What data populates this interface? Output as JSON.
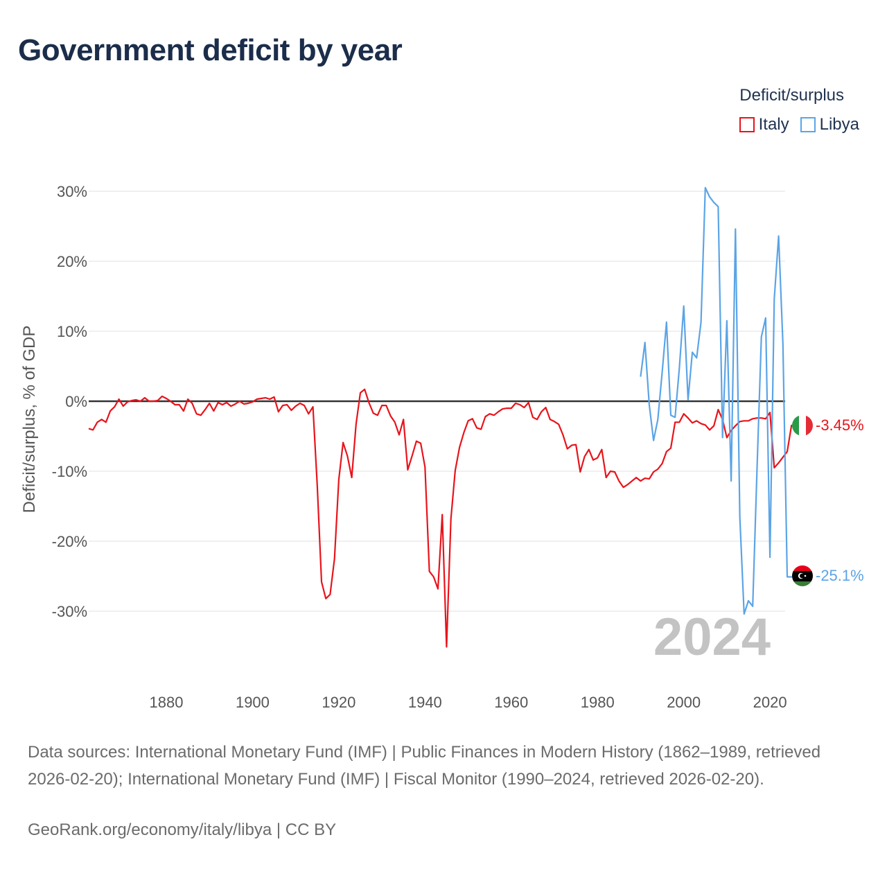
{
  "title": "Government deficit by year",
  "legend": {
    "title": "Deficit/surplus",
    "items": [
      {
        "name": "Italy",
        "color": "#e8131b"
      },
      {
        "name": "Libya",
        "color": "#5ba4e6"
      }
    ]
  },
  "chart_data": {
    "type": "line",
    "title": "Government deficit by year",
    "ylabel": "Deficit/surplus, % of GDP",
    "xlabel": "",
    "xlim": [
      1862,
      2024
    ],
    "ylim": [
      -40,
      30
    ],
    "yticks": [
      30,
      20,
      10,
      0,
      -10,
      -20,
      -30
    ],
    "ytick_labels": [
      "30%",
      "20%",
      "10%",
      "0%",
      "-10%",
      "-20%",
      "-30%"
    ],
    "xticks": [
      1880,
      1900,
      1920,
      1940,
      1960,
      1980,
      2000,
      2020
    ],
    "xtick_labels": [
      "1880",
      "1900",
      "1920",
      "1940",
      "1960",
      "1980",
      "2000",
      "2020"
    ],
    "current_year_label": "2024",
    "series": [
      {
        "name": "Italy",
        "color": "#e8131b",
        "end_label": "-3.45%",
        "end_value": -3.45,
        "points": [
          [
            1862,
            -3.9
          ],
          [
            1863,
            -4.1
          ],
          [
            1864,
            -3.0
          ],
          [
            1865,
            -2.6
          ],
          [
            1866,
            -3.0
          ],
          [
            1867,
            -1.4
          ],
          [
            1868,
            -0.8
          ],
          [
            1869,
            0.3
          ],
          [
            1870,
            -0.7
          ],
          [
            1871,
            -0.1
          ],
          [
            1872,
            0.1
          ],
          [
            1873,
            0.2
          ],
          [
            1874,
            0.0
          ],
          [
            1875,
            0.5
          ],
          [
            1876,
            0.0
          ],
          [
            1877,
            0.0
          ],
          [
            1878,
            0.1
          ],
          [
            1879,
            0.7
          ],
          [
            1880,
            0.4
          ],
          [
            1881,
            0.0
          ],
          [
            1882,
            -0.5
          ],
          [
            1883,
            -0.5
          ],
          [
            1884,
            -1.4
          ],
          [
            1885,
            0.3
          ],
          [
            1886,
            -0.3
          ],
          [
            1887,
            -1.8
          ],
          [
            1888,
            -2.0
          ],
          [
            1889,
            -1.2
          ],
          [
            1890,
            -0.3
          ],
          [
            1891,
            -1.4
          ],
          [
            1892,
            -0.2
          ],
          [
            1893,
            -0.5
          ],
          [
            1894,
            -0.2
          ],
          [
            1895,
            -0.7
          ],
          [
            1896,
            -0.4
          ],
          [
            1897,
            0.0
          ],
          [
            1898,
            -0.4
          ],
          [
            1899,
            -0.3
          ],
          [
            1900,
            -0.1
          ],
          [
            1901,
            0.3
          ],
          [
            1902,
            0.4
          ],
          [
            1903,
            0.5
          ],
          [
            1904,
            0.3
          ],
          [
            1905,
            0.6
          ],
          [
            1906,
            -1.5
          ],
          [
            1907,
            -0.6
          ],
          [
            1908,
            -0.5
          ],
          [
            1909,
            -1.3
          ],
          [
            1910,
            -0.7
          ],
          [
            1911,
            -0.3
          ],
          [
            1912,
            -0.6
          ],
          [
            1913,
            -1.8
          ],
          [
            1914,
            -0.8
          ],
          [
            1915,
            -12.0
          ],
          [
            1916,
            -25.8
          ],
          [
            1917,
            -28.2
          ],
          [
            1918,
            -27.6
          ],
          [
            1919,
            -22.5
          ],
          [
            1920,
            -11.2
          ],
          [
            1921,
            -5.9
          ],
          [
            1922,
            -7.8
          ],
          [
            1923,
            -10.9
          ],
          [
            1924,
            -3.3
          ],
          [
            1925,
            1.2
          ],
          [
            1926,
            1.7
          ],
          [
            1927,
            -0.2
          ],
          [
            1928,
            -1.7
          ],
          [
            1929,
            -2.0
          ],
          [
            1930,
            -0.6
          ],
          [
            1931,
            -0.6
          ],
          [
            1932,
            -2.1
          ],
          [
            1933,
            -3.0
          ],
          [
            1934,
            -4.8
          ],
          [
            1935,
            -2.6
          ],
          [
            1936,
            -9.8
          ],
          [
            1937,
            -7.8
          ],
          [
            1938,
            -5.7
          ],
          [
            1939,
            -6.0
          ],
          [
            1940,
            -9.4
          ],
          [
            1941,
            -24.3
          ],
          [
            1942,
            -25.1
          ],
          [
            1943,
            -26.8
          ],
          [
            1944,
            -16.2
          ],
          [
            1945,
            -35.1
          ],
          [
            1946,
            -16.8
          ],
          [
            1947,
            -9.9
          ],
          [
            1948,
            -6.6
          ],
          [
            1949,
            -4.5
          ],
          [
            1950,
            -2.8
          ],
          [
            1951,
            -2.5
          ],
          [
            1952,
            -3.8
          ],
          [
            1953,
            -4.0
          ],
          [
            1954,
            -2.2
          ],
          [
            1955,
            -1.8
          ],
          [
            1956,
            -2.0
          ],
          [
            1957,
            -1.5
          ],
          [
            1958,
            -1.1
          ],
          [
            1959,
            -1.0
          ],
          [
            1960,
            -1.0
          ],
          [
            1961,
            -0.3
          ],
          [
            1962,
            -0.5
          ],
          [
            1963,
            -0.9
          ],
          [
            1964,
            -0.2
          ],
          [
            1965,
            -2.3
          ],
          [
            1966,
            -2.6
          ],
          [
            1967,
            -1.5
          ],
          [
            1968,
            -0.9
          ],
          [
            1969,
            -2.6
          ],
          [
            1970,
            -2.9
          ],
          [
            1971,
            -3.3
          ],
          [
            1972,
            -4.8
          ],
          [
            1973,
            -6.8
          ],
          [
            1974,
            -6.3
          ],
          [
            1975,
            -6.2
          ],
          [
            1976,
            -10.1
          ],
          [
            1977,
            -7.9
          ],
          [
            1978,
            -6.9
          ],
          [
            1979,
            -8.4
          ],
          [
            1980,
            -8.1
          ],
          [
            1981,
            -6.9
          ],
          [
            1982,
            -10.9
          ],
          [
            1983,
            -10.0
          ],
          [
            1984,
            -10.1
          ],
          [
            1985,
            -11.4
          ],
          [
            1986,
            -12.3
          ],
          [
            1987,
            -11.9
          ],
          [
            1988,
            -11.4
          ],
          [
            1989,
            -10.9
          ],
          [
            1990,
            -11.4
          ],
          [
            1991,
            -11.0
          ],
          [
            1992,
            -11.1
          ],
          [
            1993,
            -10.1
          ],
          [
            1994,
            -9.7
          ],
          [
            1995,
            -8.9
          ],
          [
            1996,
            -7.2
          ],
          [
            1997,
            -6.7
          ],
          [
            1998,
            -3.0
          ],
          [
            1999,
            -3.0
          ],
          [
            2000,
            -1.8
          ],
          [
            2001,
            -2.4
          ],
          [
            2002,
            -3.1
          ],
          [
            2003,
            -2.8
          ],
          [
            2004,
            -3.2
          ],
          [
            2005,
            -3.4
          ],
          [
            2006,
            -4.1
          ],
          [
            2007,
            -3.5
          ],
          [
            2008,
            -1.2
          ],
          [
            2009,
            -2.6
          ],
          [
            2010,
            -5.2
          ],
          [
            2011,
            -4.2
          ],
          [
            2012,
            -3.5
          ],
          [
            2013,
            -2.9
          ],
          [
            2014,
            -2.8
          ],
          [
            2015,
            -2.8
          ],
          [
            2016,
            -2.5
          ],
          [
            2017,
            -2.4
          ],
          [
            2018,
            -2.4
          ],
          [
            2019,
            -2.5
          ],
          [
            2020,
            -1.6
          ],
          [
            2021,
            -9.5
          ],
          [
            2022,
            -8.8
          ],
          [
            2023,
            -8.0
          ],
          [
            2024,
            -7.2
          ],
          [
            2025,
            -3.45
          ],
          [
            2026,
            -3.45
          ]
        ]
      },
      {
        "name": "Libya",
        "color": "#5ba4e6",
        "end_label": "-25.1%",
        "end_value": -25.1,
        "points": [
          [
            1990,
            3.5
          ],
          [
            1991,
            8.4
          ],
          [
            1992,
            -0.5
          ],
          [
            1993,
            -5.6
          ],
          [
            1994,
            -2.6
          ],
          [
            1995,
            4.2
          ],
          [
            1996,
            11.3
          ],
          [
            1997,
            -2.0
          ],
          [
            1998,
            -2.3
          ],
          [
            1999,
            4.8
          ],
          [
            2000,
            13.6
          ],
          [
            2001,
            0.2
          ],
          [
            2002,
            7.0
          ],
          [
            2003,
            6.2
          ],
          [
            2004,
            11.3
          ],
          [
            2005,
            30.5
          ],
          [
            2006,
            29.2
          ],
          [
            2007,
            28.4
          ],
          [
            2008,
            27.8
          ],
          [
            2009,
            -5.2
          ],
          [
            2010,
            11.5
          ],
          [
            2011,
            -11.4
          ],
          [
            2012,
            24.6
          ],
          [
            2013,
            -16.5
          ],
          [
            2014,
            -30.4
          ],
          [
            2015,
            -28.5
          ],
          [
            2016,
            -29.3
          ],
          [
            2017,
            -9.8
          ],
          [
            2018,
            9.2
          ],
          [
            2019,
            11.9
          ],
          [
            2020,
            -22.3
          ],
          [
            2021,
            14.6
          ],
          [
            2022,
            23.6
          ],
          [
            2023,
            8.2
          ],
          [
            2024,
            -25.1
          ],
          [
            2025,
            -25.1
          ],
          [
            2026,
            -25.1
          ]
        ]
      }
    ]
  },
  "footer": {
    "sources": "Data sources: International Monetary Fund (IMF) | Public Finances in Modern History (1862–1989, retrieved 2026-02-20); International Monetary Fund (IMF) | Fiscal Monitor (1990–2024, retrieved 2026-02-20).",
    "credit": "GeoRank.org/economy/italy/libya | CC BY"
  }
}
